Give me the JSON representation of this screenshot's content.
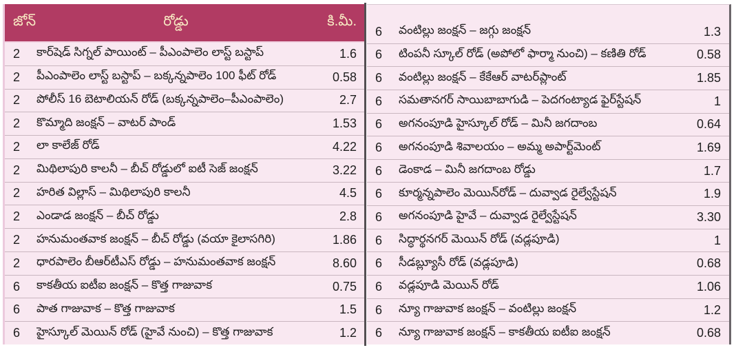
{
  "header": {
    "zone_label": "జోన్",
    "road_label": "రోడ్డు",
    "km_label": "కి.మీ."
  },
  "colors": {
    "header_bg": "#b13b63",
    "header_text": "#f9ecc4",
    "body_bg": "#f9e8f1",
    "row_text": "#1e1e1e",
    "row_separator": "#c9b6c0",
    "column_divider": "#544f53"
  },
  "table": {
    "left_rows": [
      {
        "zone": "2",
        "road": "కార్‌షెడ్ సిగ్నల్ పాయింట్ – పీఎంపాలెం లాస్ట్ బస్టాప్",
        "km": "1.6"
      },
      {
        "zone": "2",
        "road": "పీఎంపాలెం లాస్ట్ బస్టాప్ – బక్కన్నపాలెం 100 ఫీట్ రోడ్",
        "km": "0.58"
      },
      {
        "zone": "2",
        "road": "పోలీస్ 16 బెటాలియన్ రోడ్ (బక్కన్నపాలెం–పీఎంపాలెం)",
        "km": "2.7"
      },
      {
        "zone": "2",
        "road": "కొమ్మాది జంక్షన్ – వాటర్ పాండ్",
        "km": "1.53"
      },
      {
        "zone": "2",
        "road": "లా కాలేజ్ రోడ్",
        "km": "4.22"
      },
      {
        "zone": "2",
        "road": "మిథిలాపురి కాలనీ – బీచ్ రోడ్డులో ఐటీ సెజ్ జంక్షన్",
        "km": "3.22"
      },
      {
        "zone": "2",
        "road": "హరిత విల్లాస్ – మిథిలాపురి కాలనీ",
        "km": "4.5"
      },
      {
        "zone": "2",
        "road": "ఎండాడ జంక్షన్ – బీచ్ రోడ్డు",
        "km": "2.8"
      },
      {
        "zone": "2",
        "road": "హనుమంతవాక జంక్షన్ – బీచ్ రోడ్డు (వయా కైలాసగిరి)",
        "km": "1.86"
      },
      {
        "zone": "2",
        "road": "ధారపాలెం బీఆర్‌టీఎస్ రోడ్డు – హనుమంతవాక జంక్షన్",
        "km": "8.60"
      },
      {
        "zone": "6",
        "road": "కాకతీయ ఐటీఐ జంక్షన్ – కొత్త గాజువాక",
        "km": "0.75"
      },
      {
        "zone": "6",
        "road": "పాత గాజువాక – కొత్త గాజువాక",
        "km": "1.5"
      },
      {
        "zone": "6",
        "road": "హైస్కూల్ మెయిన్ రోడ్ (హైవే నుంచి) – కొత్త గాజువాక",
        "km": "1.2"
      }
    ],
    "right_rows": [
      {
        "zone": "6",
        "road": "వంటిల్లు జంక్షన్ – జగ్గు జంక్షన్",
        "km": "1.3"
      },
      {
        "zone": "6",
        "road": "టింపనీ స్కూల్ రోడ్ (అపోలో ఫార్మా నుంచి) – కణితి రోడ్",
        "km": "0.58"
      },
      {
        "zone": "6",
        "road": "వంటిల్లు జంక్షన్ – కేకేఆర్ వాటర్‌ప్లాంట్",
        "km": "1.85"
      },
      {
        "zone": "6",
        "road": "సమతానగర్ సాయిబాబాగుడి – పెదగంట్యాడ ఫైర్‌స్టేషన్",
        "km": "1"
      },
      {
        "zone": "6",
        "road": "అగనంపూడి హైస్కూల్ రోడ్ – మినీ జగదాంబ",
        "km": "0.64"
      },
      {
        "zone": "6",
        "road": "అగనంపూడి శివాలయం – అమ్మ అపార్ట్‌మెంట్",
        "km": "1.69"
      },
      {
        "zone": "6",
        "road": "డెంకాడ – మినీ జగదాంబ రోడ్డు",
        "km": "1.7"
      },
      {
        "zone": "6",
        "road": "కూర్మన్నపాలెం మెయిన్‌రోడ్ – దువ్వాడ రైల్వేస్టేషన్",
        "km": "1.9"
      },
      {
        "zone": "6",
        "road": "అగనంపూడి హైవే – దువ్వాడ రైల్వేస్టేషన్",
        "km": "3.30"
      },
      {
        "zone": "6",
        "road": "సిద్ధార్థనగర్ మెయిన్ రోడ్ (వడ్లపూడి)",
        "km": "1"
      },
      {
        "zone": "6",
        "road": "సీడబ్ల్యూసీ రోడ్ (వడ్లపూడి)",
        "km": "0.68"
      },
      {
        "zone": "6",
        "road": "వడ్లపూడి మెయిన్ రోడ్",
        "km": "1.06"
      },
      {
        "zone": "6",
        "road": "న్యూ గాజువాక జంక్షన్ – వంటిల్లు జంక్షన్",
        "km": "1.2"
      },
      {
        "zone": "6",
        "road": "న్యూ గాజువాక జంక్షన్ – కాకతీయ ఐటీఐ జంక్షన్",
        "km": "0.68"
      }
    ]
  }
}
